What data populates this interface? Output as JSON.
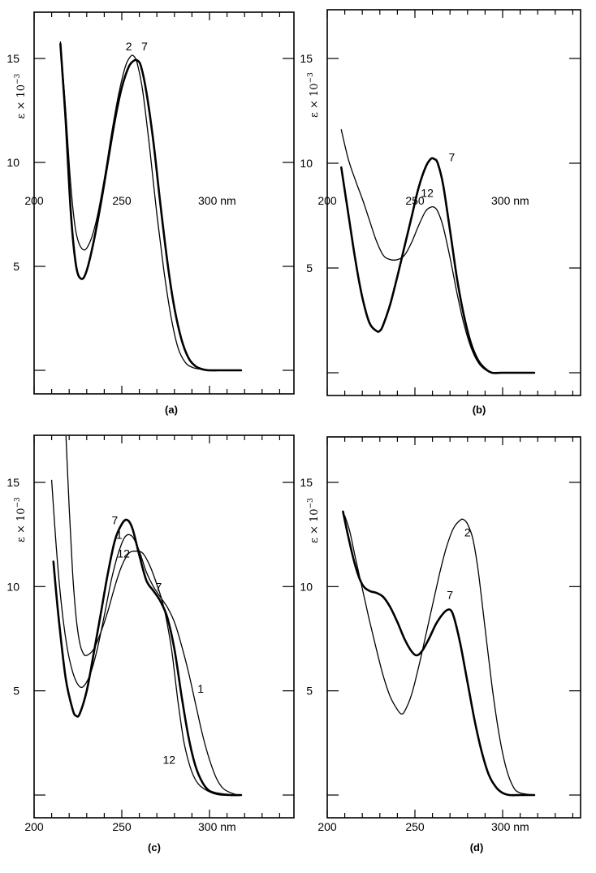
{
  "figure": {
    "y_axis_label": "ε × 10",
    "y_axis_exponent": "−3"
  },
  "chart_data": [
    {
      "type": "line",
      "panel_label": "(a)",
      "x_ticks": [
        200,
        250,
        300
      ],
      "x_tick_labels": [
        "200",
        "250",
        "300 nm"
      ],
      "y_ticks": [
        5,
        10,
        15
      ],
      "y_tick_labels": [
        "5",
        "10",
        "15"
      ],
      "xlim": [
        200,
        318
      ],
      "ylim": [
        -1,
        17.5
      ],
      "series": [
        {
          "name": "2",
          "weight": "thin",
          "label_at": [
            254,
            15.4
          ],
          "x": [
            215,
            218,
            221,
            224,
            228,
            232,
            236,
            240,
            244,
            248,
            252,
            255,
            257,
            259,
            262,
            266,
            270,
            274,
            278,
            282,
            286,
            290,
            295,
            300,
            305,
            310,
            318
          ],
          "y": [
            15.8,
            12.5,
            8.8,
            6.6,
            5.8,
            6.2,
            7.4,
            9.2,
            11.3,
            13.2,
            14.6,
            15.1,
            15.1,
            14.7,
            13.4,
            10.6,
            7.5,
            4.8,
            2.6,
            1.1,
            0.4,
            0.15,
            0.05,
            0.0,
            0.0,
            0.0,
            0.0
          ]
        },
        {
          "name": "7",
          "weight": "thick",
          "label_at": [
            263,
            15.4
          ],
          "x": [
            215,
            218,
            221,
            224,
            227,
            230,
            234,
            238,
            242,
            246,
            250,
            254,
            257,
            259,
            261,
            264,
            268,
            272,
            276,
            280,
            284,
            288,
            292,
            296,
            300,
            305,
            310,
            318
          ],
          "y": [
            15.7,
            12.0,
            7.5,
            5.0,
            4.4,
            4.8,
            6.2,
            8.0,
            10.0,
            12.0,
            13.6,
            14.6,
            14.9,
            14.9,
            14.6,
            13.4,
            11.0,
            8.0,
            5.2,
            3.0,
            1.5,
            0.6,
            0.2,
            0.05,
            0.0,
            0.0,
            0.0,
            0.0
          ]
        }
      ]
    },
    {
      "type": "line",
      "panel_label": "(b)",
      "x_ticks": [
        200,
        250,
        300
      ],
      "x_tick_labels": [
        "200",
        "250",
        "300 nm"
      ],
      "y_ticks": [
        5,
        10,
        15
      ],
      "y_tick_labels": [
        "5",
        "10",
        "15"
      ],
      "xlim": [
        200,
        318
      ],
      "ylim": [
        -1,
        17.5
      ],
      "series": [
        {
          "name": "7",
          "weight": "thick",
          "label_at": [
            271,
            10.1
          ],
          "x": [
            208,
            212,
            216,
            220,
            224,
            228,
            230,
            232,
            236,
            240,
            244,
            248,
            252,
            256,
            259,
            261,
            263,
            266,
            270,
            274,
            278,
            282,
            286,
            290,
            294,
            300,
            310,
            318
          ],
          "y": [
            9.8,
            7.6,
            5.4,
            3.6,
            2.4,
            2.0,
            2.0,
            2.3,
            3.3,
            4.6,
            6.0,
            7.4,
            8.8,
            9.8,
            10.2,
            10.2,
            10.0,
            9.0,
            6.8,
            4.5,
            2.7,
            1.4,
            0.6,
            0.2,
            0.0,
            0.0,
            0.0,
            0.0
          ]
        },
        {
          "name": "12",
          "weight": "thin",
          "label_at": [
            257,
            8.4
          ],
          "x": [
            208,
            212,
            216,
            220,
            224,
            228,
            232,
            236,
            240,
            244,
            248,
            252,
            256,
            259,
            261,
            263,
            266,
            270,
            274,
            278,
            282,
            286,
            290,
            294,
            300,
            310,
            318
          ],
          "y": [
            11.6,
            10.2,
            9.2,
            8.3,
            7.3,
            6.3,
            5.6,
            5.4,
            5.4,
            5.6,
            6.2,
            7.0,
            7.7,
            7.9,
            7.9,
            7.7,
            7.0,
            5.5,
            3.8,
            2.3,
            1.2,
            0.5,
            0.15,
            0.0,
            0.0,
            0.0,
            0.0
          ]
        }
      ]
    },
    {
      "type": "line",
      "panel_label": "(c)",
      "x_ticks": [
        200,
        250,
        300
      ],
      "x_tick_labels": [
        "200",
        "250",
        "300 nm"
      ],
      "y_ticks": [
        5,
        10,
        15
      ],
      "y_tick_labels": [
        "5",
        "10",
        "15"
      ],
      "xlim": [
        200,
        318
      ],
      "ylim": [
        -1,
        17.5
      ],
      "series": [
        {
          "name": "7",
          "weight": "thick",
          "label_at": [
            246,
            13.0
          ],
          "x": [
            211,
            214,
            218,
            222,
            224,
            226,
            230,
            234,
            238,
            242,
            246,
            250,
            253,
            256,
            260,
            264,
            268,
            272,
            276,
            280,
            284,
            288,
            292,
            296,
            300,
            306,
            312,
            318
          ],
          "y": [
            11.2,
            8.5,
            5.6,
            4.1,
            3.8,
            3.9,
            5.0,
            6.8,
            8.7,
            10.6,
            12.2,
            13.0,
            13.2,
            12.8,
            11.5,
            10.3,
            9.8,
            9.3,
            8.5,
            7.0,
            4.8,
            2.8,
            1.4,
            0.6,
            0.2,
            0.05,
            0.0,
            0.0
          ]
        },
        {
          "name": "1",
          "weight": "thin",
          "label_at": [
            248.5,
            12.3
          ],
          "x": [
            210,
            213,
            216,
            219,
            222,
            225,
            228,
            232,
            236,
            240,
            244,
            248,
            252,
            256,
            260,
            264,
            268,
            272,
            276,
            280,
            284,
            288,
            292,
            296,
            300,
            304,
            308,
            314,
            318
          ],
          "y": [
            15.1,
            11.5,
            8.8,
            7.0,
            5.9,
            5.3,
            5.2,
            5.8,
            7.0,
            8.6,
            10.3,
            11.6,
            12.4,
            12.4,
            11.7,
            10.7,
            10.0,
            9.5,
            9.0,
            8.3,
            7.2,
            5.9,
            4.4,
            2.9,
            1.7,
            0.8,
            0.3,
            0.05,
            0.0
          ]
        },
        {
          "name": "12",
          "weight": "thin",
          "label_at": [
            251,
            11.4
          ],
          "x": [
            218,
            220,
            222,
            224,
            226,
            228,
            230,
            234,
            238,
            242,
            246,
            250,
            254,
            258,
            262,
            266,
            270,
            274,
            278,
            280,
            282,
            284,
            286,
            290,
            294,
            300,
            306,
            312,
            318
          ],
          "y": [
            17.5,
            13.8,
            10.6,
            8.5,
            7.3,
            6.8,
            6.7,
            7.0,
            7.8,
            8.8,
            10.0,
            11.0,
            11.6,
            11.7,
            11.6,
            11.0,
            10.1,
            9.0,
            7.2,
            5.9,
            4.5,
            3.3,
            2.3,
            1.1,
            0.5,
            0.15,
            0.0,
            0.0,
            0.0
          ]
        }
      ],
      "annotations": [
        {
          "text": "7",
          "at": [
            271,
            9.8
          ]
        },
        {
          "text": "1",
          "at": [
            295,
            4.9
          ]
        },
        {
          "text": "12",
          "at": [
            277,
            1.5
          ]
        }
      ]
    },
    {
      "type": "line",
      "panel_label": "(d)",
      "x_ticks": [
        200,
        250,
        300
      ],
      "x_tick_labels": [
        "200",
        "250",
        "300 nm"
      ],
      "y_ticks": [
        5,
        10,
        15
      ],
      "y_tick_labels": [
        "5",
        "10",
        "15"
      ],
      "xlim": [
        200,
        318
      ],
      "ylim": [
        -1,
        17.5
      ],
      "series": [
        {
          "name": "2",
          "weight": "thin",
          "label_at": [
            280,
            12.4
          ],
          "x": [
            210,
            213,
            216,
            220,
            224,
            228,
            232,
            236,
            240,
            242,
            244,
            248,
            252,
            256,
            260,
            264,
            268,
            272,
            276,
            278,
            280,
            283,
            286,
            290,
            294,
            298,
            302,
            306,
            310,
            318
          ],
          "y": [
            13.4,
            12.6,
            11.4,
            9.9,
            8.4,
            7.0,
            5.7,
            4.7,
            4.1,
            3.9,
            4.0,
            4.8,
            6.1,
            7.6,
            9.1,
            10.6,
            11.9,
            12.8,
            13.2,
            13.2,
            13.0,
            12.3,
            10.8,
            8.0,
            5.2,
            2.9,
            1.3,
            0.4,
            0.1,
            0.0
          ]
        },
        {
          "name": "7",
          "weight": "thick",
          "label_at": [
            270,
            9.4
          ],
          "x": [
            209,
            212,
            216,
            220,
            224,
            228,
            232,
            236,
            240,
            244,
            248,
            251,
            254,
            258,
            262,
            266,
            269,
            271,
            273,
            276,
            280,
            284,
            288,
            292,
            296,
            300,
            304,
            310,
            318
          ],
          "y": [
            13.6,
            12.4,
            11.0,
            10.1,
            9.8,
            9.7,
            9.5,
            9.0,
            8.3,
            7.5,
            6.9,
            6.7,
            6.9,
            7.5,
            8.2,
            8.7,
            8.9,
            8.8,
            8.3,
            7.2,
            5.4,
            3.6,
            2.1,
            1.0,
            0.4,
            0.1,
            0.0,
            0.0,
            0.0
          ]
        }
      ]
    }
  ]
}
